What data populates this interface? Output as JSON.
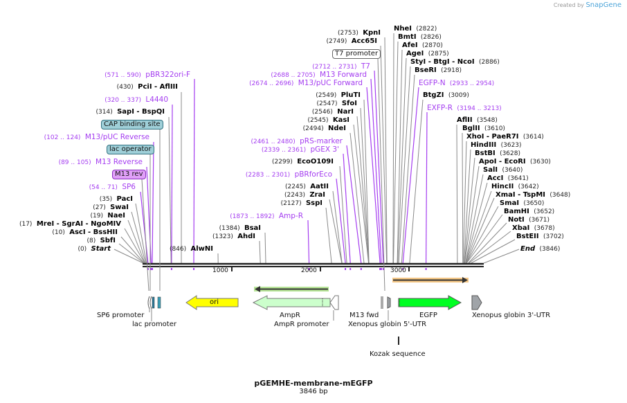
{
  "credit": {
    "prefix": "Created by",
    "brand": "SnapGene"
  },
  "title": "pGEMHE-membrane-mEGFP",
  "length": "3846 bp",
  "ticks": [
    "1000",
    "2000",
    "3000"
  ],
  "sites": [
    {
      "pos": "(571 .. 590)",
      "name": "pBR322ori-F",
      "kind": "primer"
    },
    {
      "pos": "(430)",
      "name": "PciI  - AflIII",
      "kind": "enzyme"
    },
    {
      "pos": "(320 .. 337)",
      "name": "L4440",
      "kind": "primer"
    },
    {
      "pos": "(314)",
      "name": "SapI  - BspQI",
      "kind": "enzyme"
    },
    {
      "pos": "(102 .. 124)",
      "name": "M13/pUC Reverse",
      "kind": "primer"
    },
    {
      "pos": "(89 .. 105)",
      "name": "M13 Reverse",
      "kind": "primer"
    },
    {
      "pos": "(54 .. 71)",
      "name": "SP6",
      "kind": "primer"
    },
    {
      "pos": "(35)",
      "name": "PacI",
      "kind": "enzyme"
    },
    {
      "pos": "(27)",
      "name": "SwaI",
      "kind": "enzyme"
    },
    {
      "pos": "(19)",
      "name": "NaeI",
      "kind": "enzyme"
    },
    {
      "pos": "(17)",
      "name": "MreI  - SgrAI  - NgoMIV",
      "kind": "enzyme"
    },
    {
      "pos": "(10)",
      "name": "AscI  - BssHII",
      "kind": "enzyme"
    },
    {
      "pos": "(8)",
      "name": "SbfI",
      "kind": "enzyme"
    },
    {
      "pos": "(0)",
      "name": "Start",
      "kind": "end"
    },
    {
      "pos": "(846)",
      "name": "AlwNI",
      "kind": "enzyme"
    },
    {
      "pos": "(1873 .. 1892)",
      "name": "Amp-R",
      "kind": "primer"
    },
    {
      "pos": "(1384)",
      "name": "BsaI",
      "kind": "enzyme"
    },
    {
      "pos": "(1323)",
      "name": "AhdI",
      "kind": "enzyme"
    },
    {
      "pos": "(2127)",
      "name": "SspI",
      "kind": "enzyme"
    },
    {
      "pos": "(2243)",
      "name": "ZraI",
      "kind": "enzyme"
    },
    {
      "pos": "(2245)",
      "name": "AatII",
      "kind": "enzyme"
    },
    {
      "pos": "(2283 .. 2301)",
      "name": "pBRforEco",
      "kind": "primer"
    },
    {
      "pos": "(2299)",
      "name": "EcoO109I",
      "kind": "enzyme"
    },
    {
      "pos": "(2339 .. 2361)",
      "name": "pGEX 3'",
      "kind": "primer"
    },
    {
      "pos": "(2461 .. 2480)",
      "name": "pRS-marker",
      "kind": "primer"
    },
    {
      "pos": "(2494)",
      "name": "NdeI",
      "kind": "enzyme"
    },
    {
      "pos": "(2545)",
      "name": "KasI",
      "kind": "enzyme"
    },
    {
      "pos": "(2546)",
      "name": "NarI",
      "kind": "enzyme"
    },
    {
      "pos": "(2547)",
      "name": "SfoI",
      "kind": "enzyme"
    },
    {
      "pos": "(2549)",
      "name": "PluTI",
      "kind": "enzyme"
    },
    {
      "pos": "(2674 .. 2696)",
      "name": "M13/pUC Forward",
      "kind": "primer"
    },
    {
      "pos": "(2688 .. 2705)",
      "name": "M13 Forward",
      "kind": "primer"
    },
    {
      "pos": "(2712 .. 2731)",
      "name": "T7",
      "kind": "primer"
    },
    {
      "pos": "(2749)",
      "name": "Acc65I",
      "kind": "enzyme"
    },
    {
      "pos": "(2753)",
      "name": "KpnI",
      "kind": "enzyme"
    },
    {
      "pos": "(2822)",
      "name": "NheI",
      "kind": "enzyme"
    },
    {
      "pos": "(2826)",
      "name": "BmtI",
      "kind": "enzyme"
    },
    {
      "pos": "(2870)",
      "name": "AfeI",
      "kind": "enzyme"
    },
    {
      "pos": "(2875)",
      "name": "AgeI",
      "kind": "enzyme"
    },
    {
      "pos": "(2886)",
      "name": "StyI  - BtgI  - NcoI",
      "kind": "enzyme"
    },
    {
      "pos": "(2918)",
      "name": "BseRI",
      "kind": "enzyme"
    },
    {
      "pos": "(2933 .. 2954)",
      "name": "EGFP-N",
      "kind": "primer"
    },
    {
      "pos": "(3009)",
      "name": "BtgZI",
      "kind": "enzyme"
    },
    {
      "pos": "(3194 .. 3213)",
      "name": "EXFP-R",
      "kind": "primer"
    },
    {
      "pos": "(3548)",
      "name": "AflII",
      "kind": "enzyme"
    },
    {
      "pos": "(3610)",
      "name": "BglII",
      "kind": "enzyme"
    },
    {
      "pos": "(3614)",
      "name": "XhoI  - PaeR7I",
      "kind": "enzyme"
    },
    {
      "pos": "(3623)",
      "name": "HindIII",
      "kind": "enzyme"
    },
    {
      "pos": "(3628)",
      "name": "BstBI",
      "kind": "enzyme"
    },
    {
      "pos": "(3630)",
      "name": "ApoI  - EcoRI",
      "kind": "enzyme"
    },
    {
      "pos": "(3640)",
      "name": "SalI",
      "kind": "enzyme"
    },
    {
      "pos": "(3641)",
      "name": "AccI",
      "kind": "enzyme"
    },
    {
      "pos": "(3642)",
      "name": "HincII",
      "kind": "enzyme"
    },
    {
      "pos": "(3648)",
      "name": "XmaI  - TspMI",
      "kind": "enzyme"
    },
    {
      "pos": "(3650)",
      "name": "SmaI",
      "kind": "enzyme"
    },
    {
      "pos": "(3652)",
      "name": "BamHI",
      "kind": "enzyme"
    },
    {
      "pos": "(3671)",
      "name": "NotI",
      "kind": "enzyme"
    },
    {
      "pos": "(3678)",
      "name": "XbaI",
      "kind": "enzyme"
    },
    {
      "pos": "(3702)",
      "name": "BstEII",
      "kind": "enzyme"
    },
    {
      "pos": "(3846)",
      "name": "End",
      "kind": "end"
    }
  ],
  "boxed_features": {
    "cap": "CAP binding site",
    "lac_operator": "lac operator",
    "m13_rev": "M13 rev",
    "t7_promoter": "T7 promoter"
  },
  "features": {
    "sp6_promoter": "SP6 promoter",
    "lac_promoter": "lac promoter",
    "ori": "ori",
    "ampr": "AmpR",
    "ampr_promoter": "AmpR promoter",
    "m13_fwd": "M13 fwd",
    "globin5": "Xenopus globin 5'-UTR",
    "egfp": "EGFP",
    "globin3": "Xenopus globin 3'-UTR",
    "kozak": "Kozak sequence"
  },
  "colors": {
    "primer": "#a43cf0",
    "ori": "#ffff00",
    "ampr": "#ccffcc",
    "egfp": "#00ff22",
    "utr": "#a0a4a8",
    "orf_egfp": "#f5c27a",
    "orf_ampr": "#a8e080"
  }
}
